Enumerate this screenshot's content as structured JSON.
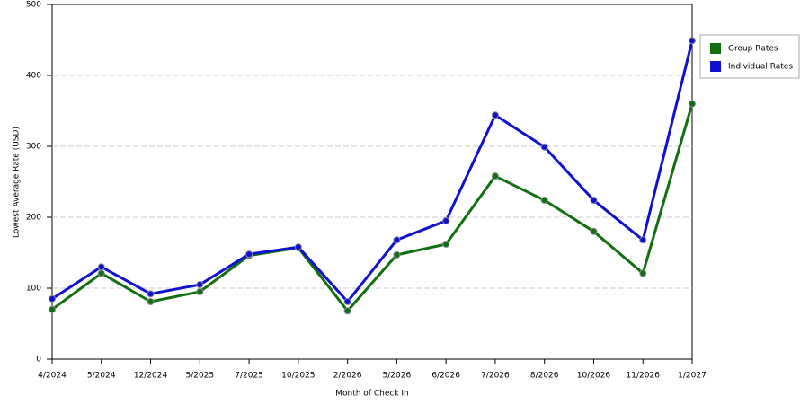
{
  "chart_data": {
    "type": "line",
    "x_label": "Month of Check In",
    "y_label": "Lowest Average Rate (USD)",
    "categories": [
      "4/2024",
      "5/2024",
      "12/2024",
      "5/2025",
      "7/2025",
      "10/2025",
      "2/2026",
      "5/2026",
      "6/2026",
      "7/2026",
      "8/2026",
      "10/2026",
      "11/2026",
      "1/2027"
    ],
    "series": [
      {
        "name": "Group Rates",
        "color": "#107010",
        "values": [
          70,
          121,
          81,
          95,
          146,
          157,
          68,
          147,
          162,
          258,
          224,
          180,
          121,
          360
        ]
      },
      {
        "name": "Individual Rates",
        "color": "#1010d0",
        "values": [
          85,
          130,
          92,
          105,
          148,
          158,
          81,
          168,
          195,
          344,
          299,
          224,
          168,
          449
        ]
      }
    ],
    "ylim": [
      0,
      500
    ],
    "yticks": [
      0,
      100,
      200,
      300,
      400,
      500
    ],
    "grid": true,
    "legend": "top-right"
  }
}
